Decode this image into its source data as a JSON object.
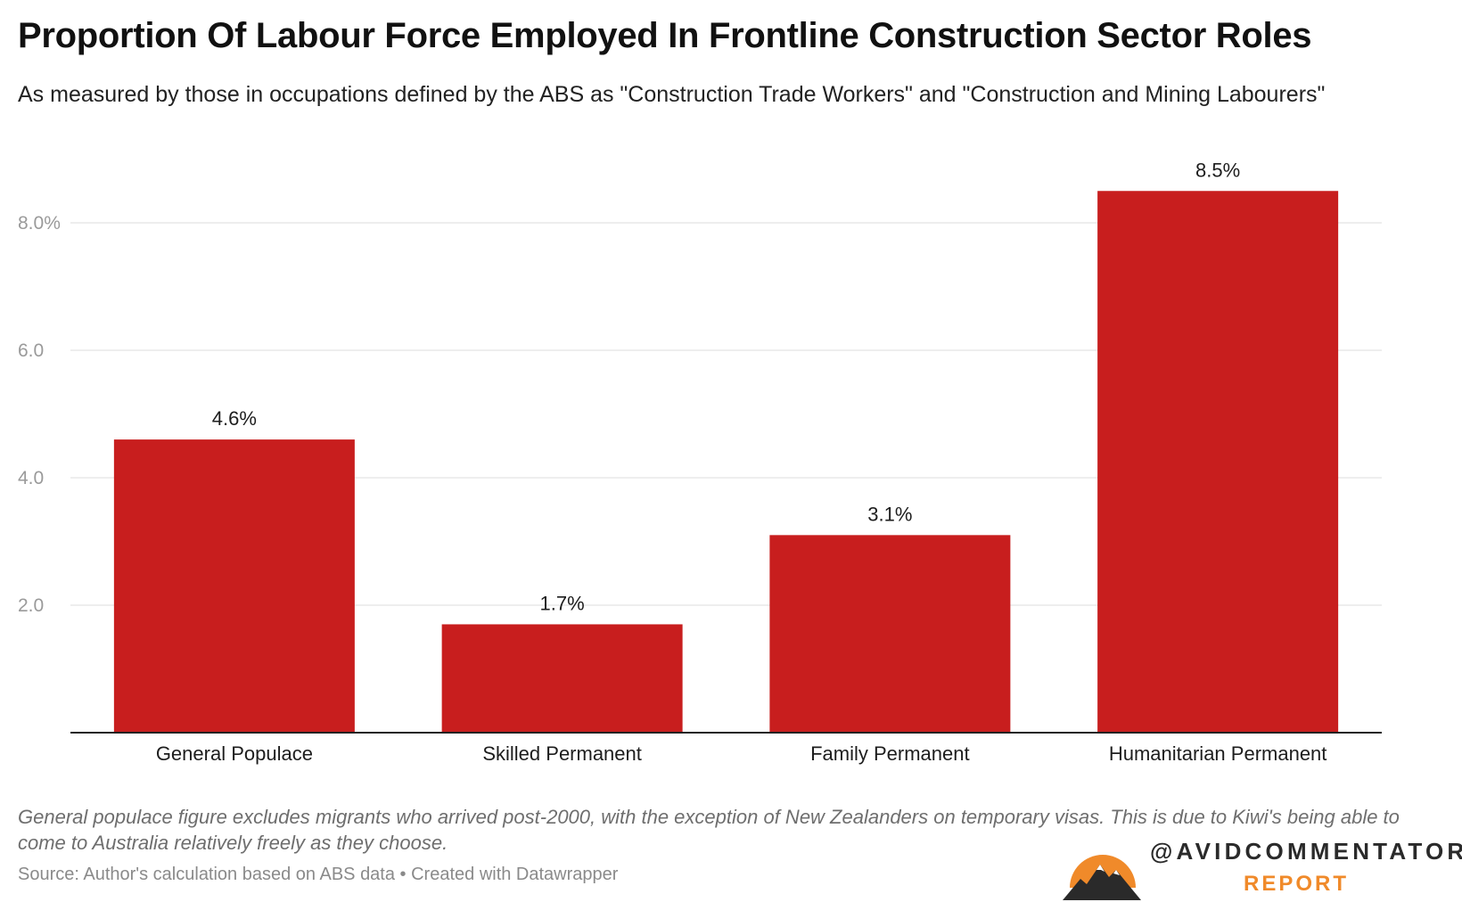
{
  "header": {
    "title": "Proportion Of Labour Force Employed In Frontline Construction Sector Roles",
    "subtitle": "As measured by those in occupations defined by the ABS as \"Construction Trade Workers\" and \"Construction and Mining Labourers\""
  },
  "chart_data": {
    "type": "bar",
    "categories": [
      "General Populace",
      "Skilled Permanent",
      "Family Permanent",
      "Humanitarian Permanent"
    ],
    "values": [
      4.6,
      1.7,
      3.1,
      8.5
    ],
    "value_labels": [
      "4.6%",
      "1.7%",
      "3.1%",
      "8.5%"
    ],
    "y_ticks": [
      2,
      4,
      6,
      8
    ],
    "y_tick_labels": [
      "2.0",
      "4.0",
      "6.0",
      "8.0%"
    ],
    "ylim": [
      0,
      8.5
    ],
    "grid": true,
    "bar_color": "#c81e1e",
    "xlabel": "",
    "ylabel": ""
  },
  "footer": {
    "notes": "General populace figure excludes migrants who arrived post-2000, with the exception of New Zealanders on temporary visas. This is due to Kiwi's being able to come to Australia relatively freely as they choose.",
    "source": "Source: Author's calculation based on ABS data • Created with Datawrapper"
  },
  "logo": {
    "name": "@AVIDCOMMENTATOR",
    "sub": "REPORT",
    "sun_color": "#f08a2a"
  }
}
